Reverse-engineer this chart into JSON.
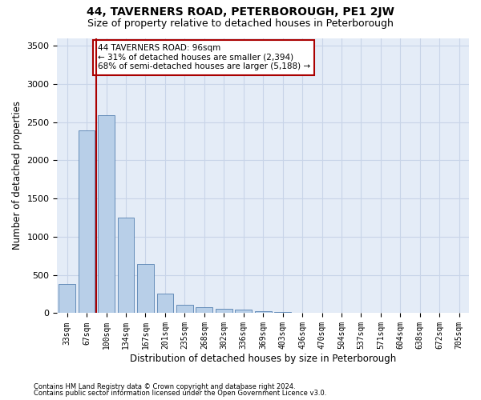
{
  "title": "44, TAVERNERS ROAD, PETERBOROUGH, PE1 2JW",
  "subtitle": "Size of property relative to detached houses in Peterborough",
  "xlabel": "Distribution of detached houses by size in Peterborough",
  "ylabel": "Number of detached properties",
  "footer_line1": "Contains HM Land Registry data © Crown copyright and database right 2024.",
  "footer_line2": "Contains public sector information licensed under the Open Government Licence v3.0.",
  "categories": [
    "33sqm",
    "67sqm",
    "100sqm",
    "134sqm",
    "167sqm",
    "201sqm",
    "235sqm",
    "268sqm",
    "302sqm",
    "336sqm",
    "369sqm",
    "403sqm",
    "436sqm",
    "470sqm",
    "504sqm",
    "537sqm",
    "571sqm",
    "604sqm",
    "638sqm",
    "672sqm",
    "705sqm"
  ],
  "values": [
    380,
    2390,
    2590,
    1250,
    640,
    255,
    105,
    80,
    60,
    50,
    30,
    20,
    10,
    5,
    3,
    2,
    1,
    1,
    0,
    0,
    0
  ],
  "bar_color": "#b8cfe8",
  "bar_edge_color": "#5580b0",
  "vline_x": 1.5,
  "vline_color": "#aa0000",
  "annotation_text": "44 TAVERNERS ROAD: 96sqm\n← 31% of detached houses are smaller (2,394)\n68% of semi-detached houses are larger (5,188) →",
  "annotation_box_color": "white",
  "annotation_box_edge": "#aa0000",
  "ylim": [
    0,
    3600
  ],
  "yticks": [
    0,
    500,
    1000,
    1500,
    2000,
    2500,
    3000,
    3500
  ],
  "grid_color": "#c8d4e8",
  "bg_color": "#e4ecf7",
  "title_fontsize": 10,
  "subtitle_fontsize": 9,
  "axis_label_fontsize": 8.5,
  "tick_fontsize": 8,
  "xtick_fontsize": 7
}
